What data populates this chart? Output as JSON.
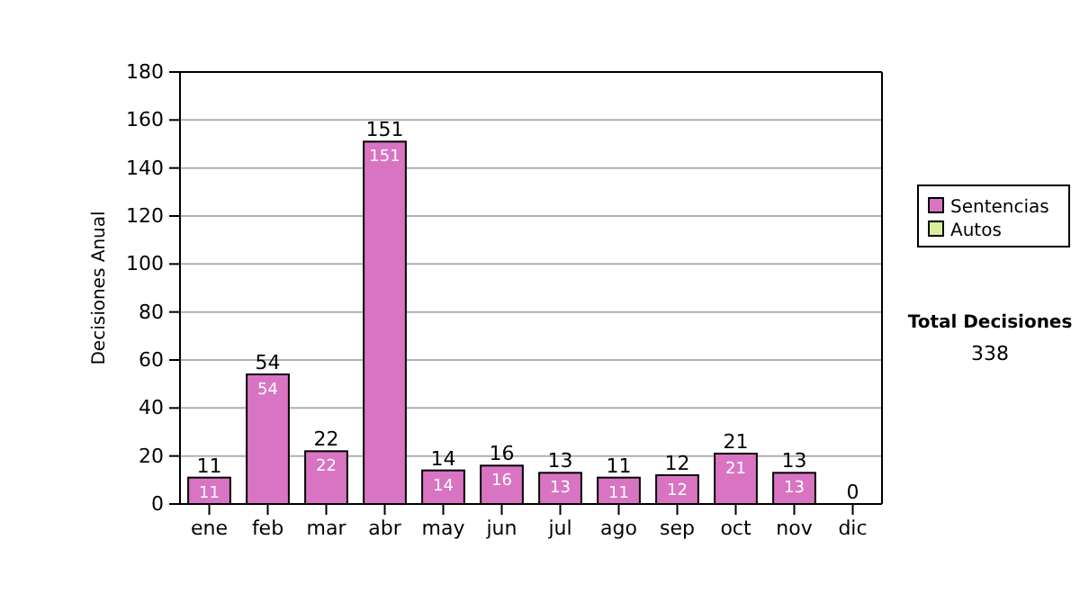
{
  "chart_data": {
    "type": "bar",
    "stacked": true,
    "ylabel": "Decisiones Anual",
    "categories": [
      "ene",
      "feb",
      "mar",
      "abr",
      "may",
      "jun",
      "jul",
      "ago",
      "sep",
      "oct",
      "nov",
      "dic"
    ],
    "series": [
      {
        "name": "Sentencias",
        "color": "#d974c3",
        "values": [
          11,
          54,
          22,
          151,
          14,
          16,
          13,
          11,
          12,
          21,
          13,
          0
        ],
        "value_labels": [
          "11",
          "54",
          "22",
          "151",
          "14",
          "16",
          "13",
          "11",
          "12",
          "21",
          "13",
          null
        ]
      },
      {
        "name": "Autos",
        "color": "#d9ef9a",
        "values": [
          0,
          0,
          0,
          0,
          0,
          0,
          0,
          0,
          0,
          0,
          0,
          0
        ]
      }
    ],
    "totals": [
      "11",
      "54",
      "22",
      "151",
      "14",
      "16",
      "13",
      "11",
      "12",
      "21",
      "13",
      "0"
    ],
    "ylim": [
      0,
      180
    ],
    "yticks": [
      0,
      20,
      40,
      60,
      80,
      100,
      120,
      140,
      160,
      180
    ],
    "grid": "y",
    "legend": "right",
    "annotations": [
      "Total Decisiones",
      "338"
    ]
  }
}
